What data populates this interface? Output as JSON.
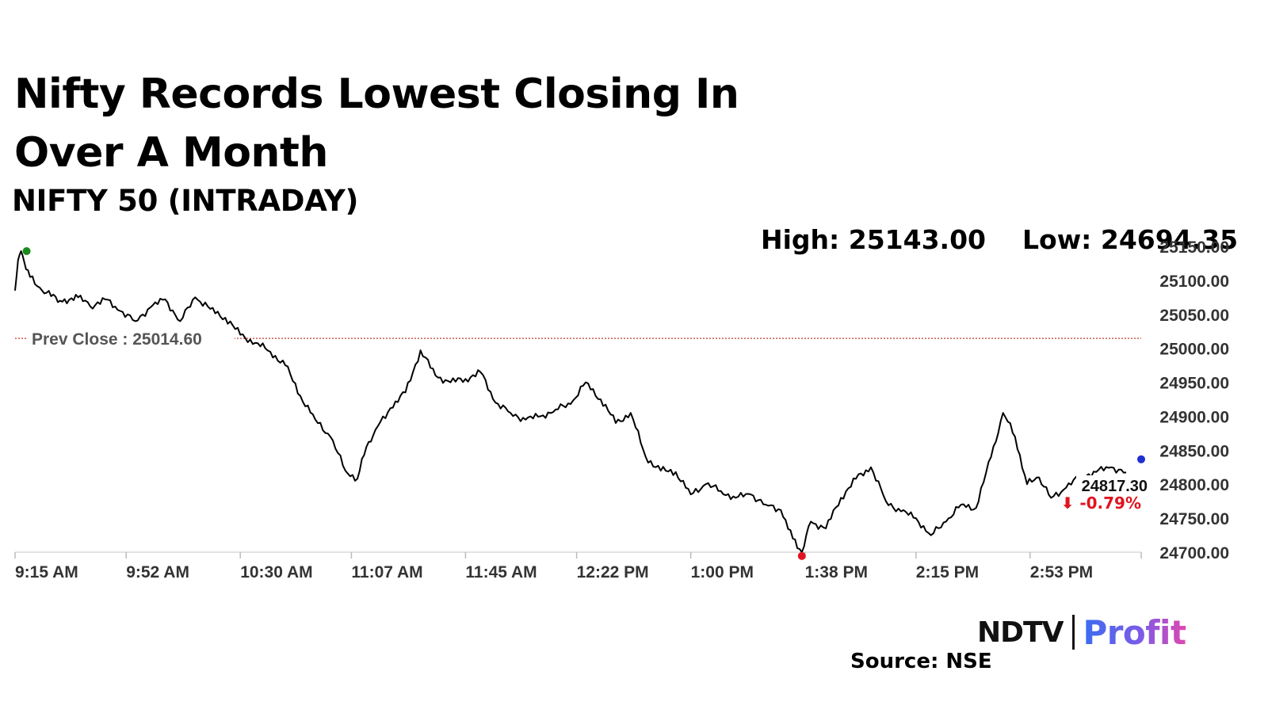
{
  "title": "Nifty Records Lowest Closing In Over A Month",
  "subtitle": "NIFTY 50 (INTRADAY)",
  "stats": {
    "high": "High: 25143.00",
    "low": "Low: 24694.35"
  },
  "source": "Source: NSE",
  "brand": {
    "ndtv": "NDTV",
    "profit": "Profit"
  },
  "colors": {
    "line": "#000000",
    "prev_close": "#c0392b",
    "high_marker": "#1a8a1a",
    "low_marker": "#e0141e",
    "last_marker": "#1f2fd0",
    "change_text": "#e0141e",
    "axis_text": "#333333"
  },
  "chart_data": {
    "type": "line",
    "y_ticks": [
      "25150.00",
      "25100.00",
      "25050.00",
      "25000.00",
      "24950.00",
      "24900.00",
      "24850.00",
      "24800.00",
      "24750.00",
      "24700.00"
    ],
    "x_ticks": [
      "9:15 AM",
      "9:52 AM",
      "10:30 AM",
      "11:07 AM",
      "11:45 AM",
      "12:22 PM",
      "1:00 PM",
      "1:38 PM",
      "2:15 PM",
      "2:53 PM"
    ],
    "ylim": [
      24700,
      25150
    ],
    "prev_close": {
      "label": "Prev Close : 25014.60",
      "value": 25014.6
    },
    "last": {
      "value_label": "24817.30",
      "change_label": "⬇ -0.79%",
      "value": 24817.3
    },
    "high_point": {
      "time": "9:17 AM",
      "value": 25143.0
    },
    "low_point": {
      "time": "1:37 PM",
      "value": 24694.35
    },
    "series": [
      {
        "x": [
          "9:15 AM",
          "9:16 AM",
          "9:17 AM",
          "9:18 AM",
          "9:20 AM",
          "9:24 AM",
          "9:30 AM",
          "9:36 AM",
          "9:40 AM",
          "9:45 AM",
          "9:50 AM",
          "9:55 AM",
          "10:00 AM",
          "10:05 AM",
          "10:10 AM",
          "10:15 AM",
          "10:20 AM",
          "10:25 AM",
          "10:30 AM",
          "10:35 AM",
          "10:40 AM",
          "10:45 AM",
          "10:50 AM",
          "10:55 AM",
          "11:00 AM",
          "11:05 AM",
          "11:09 AM",
          "11:12 AM",
          "11:15 AM",
          "11:20 AM",
          "11:25 AM",
          "11:30 AM",
          "11:35 AM",
          "11:40 AM",
          "11:45 AM",
          "11:50 AM",
          "11:55 AM",
          "12:00 PM",
          "12:05 PM",
          "12:10 PM",
          "12:15 PM",
          "12:20 PM",
          "12:25 PM",
          "12:30 PM",
          "12:35 PM",
          "12:40 PM",
          "12:45 PM",
          "12:50 PM",
          "12:55 PM",
          "1:00 PM",
          "1:05 PM",
          "1:10 PM",
          "1:15 PM",
          "1:20 PM",
          "1:25 PM",
          "1:30 PM",
          "1:34 PM",
          "1:37 PM",
          "1:40 PM",
          "1:45 PM",
          "1:50 PM",
          "1:55 PM",
          "2:00 PM",
          "2:05 PM",
          "2:10 PM",
          "2:15 PM",
          "2:20 PM",
          "2:25 PM",
          "2:30 PM",
          "2:35 PM",
          "2:40 PM",
          "2:44 PM",
          "2:48 PM",
          "2:52 PM",
          "2:56 PM",
          "3:00 PM",
          "3:05 PM",
          "3:10 PM",
          "3:15 PM",
          "3:20 PM",
          "3:25 PM"
        ],
        "y": [
          25085,
          25130,
          25143,
          25128,
          25105,
          25085,
          25070,
          25075,
          25062,
          25072,
          25055,
          25040,
          25060,
          25072,
          25040,
          25075,
          25058,
          25045,
          25020,
          25008,
          24995,
          24975,
          24930,
          24895,
          24870,
          24820,
          24808,
          24855,
          24880,
          24912,
          24935,
          24997,
          24960,
          24950,
          24955,
          24965,
          24920,
          24905,
          24895,
          24900,
          24910,
          24918,
          24950,
          24925,
          24890,
          24905,
          24840,
          24820,
          24818,
          24785,
          24800,
          24790,
          24780,
          24785,
          24770,
          24762,
          24720,
          24700,
          24745,
          24735,
          24780,
          24808,
          24825,
          24775,
          24760,
          24750,
          24725,
          24745,
          24770,
          24765,
          24840,
          24905,
          24870,
          24800,
          24810,
          24780,
          24795,
          24812,
          24818,
          24825,
          24817.3
        ]
      }
    ]
  }
}
